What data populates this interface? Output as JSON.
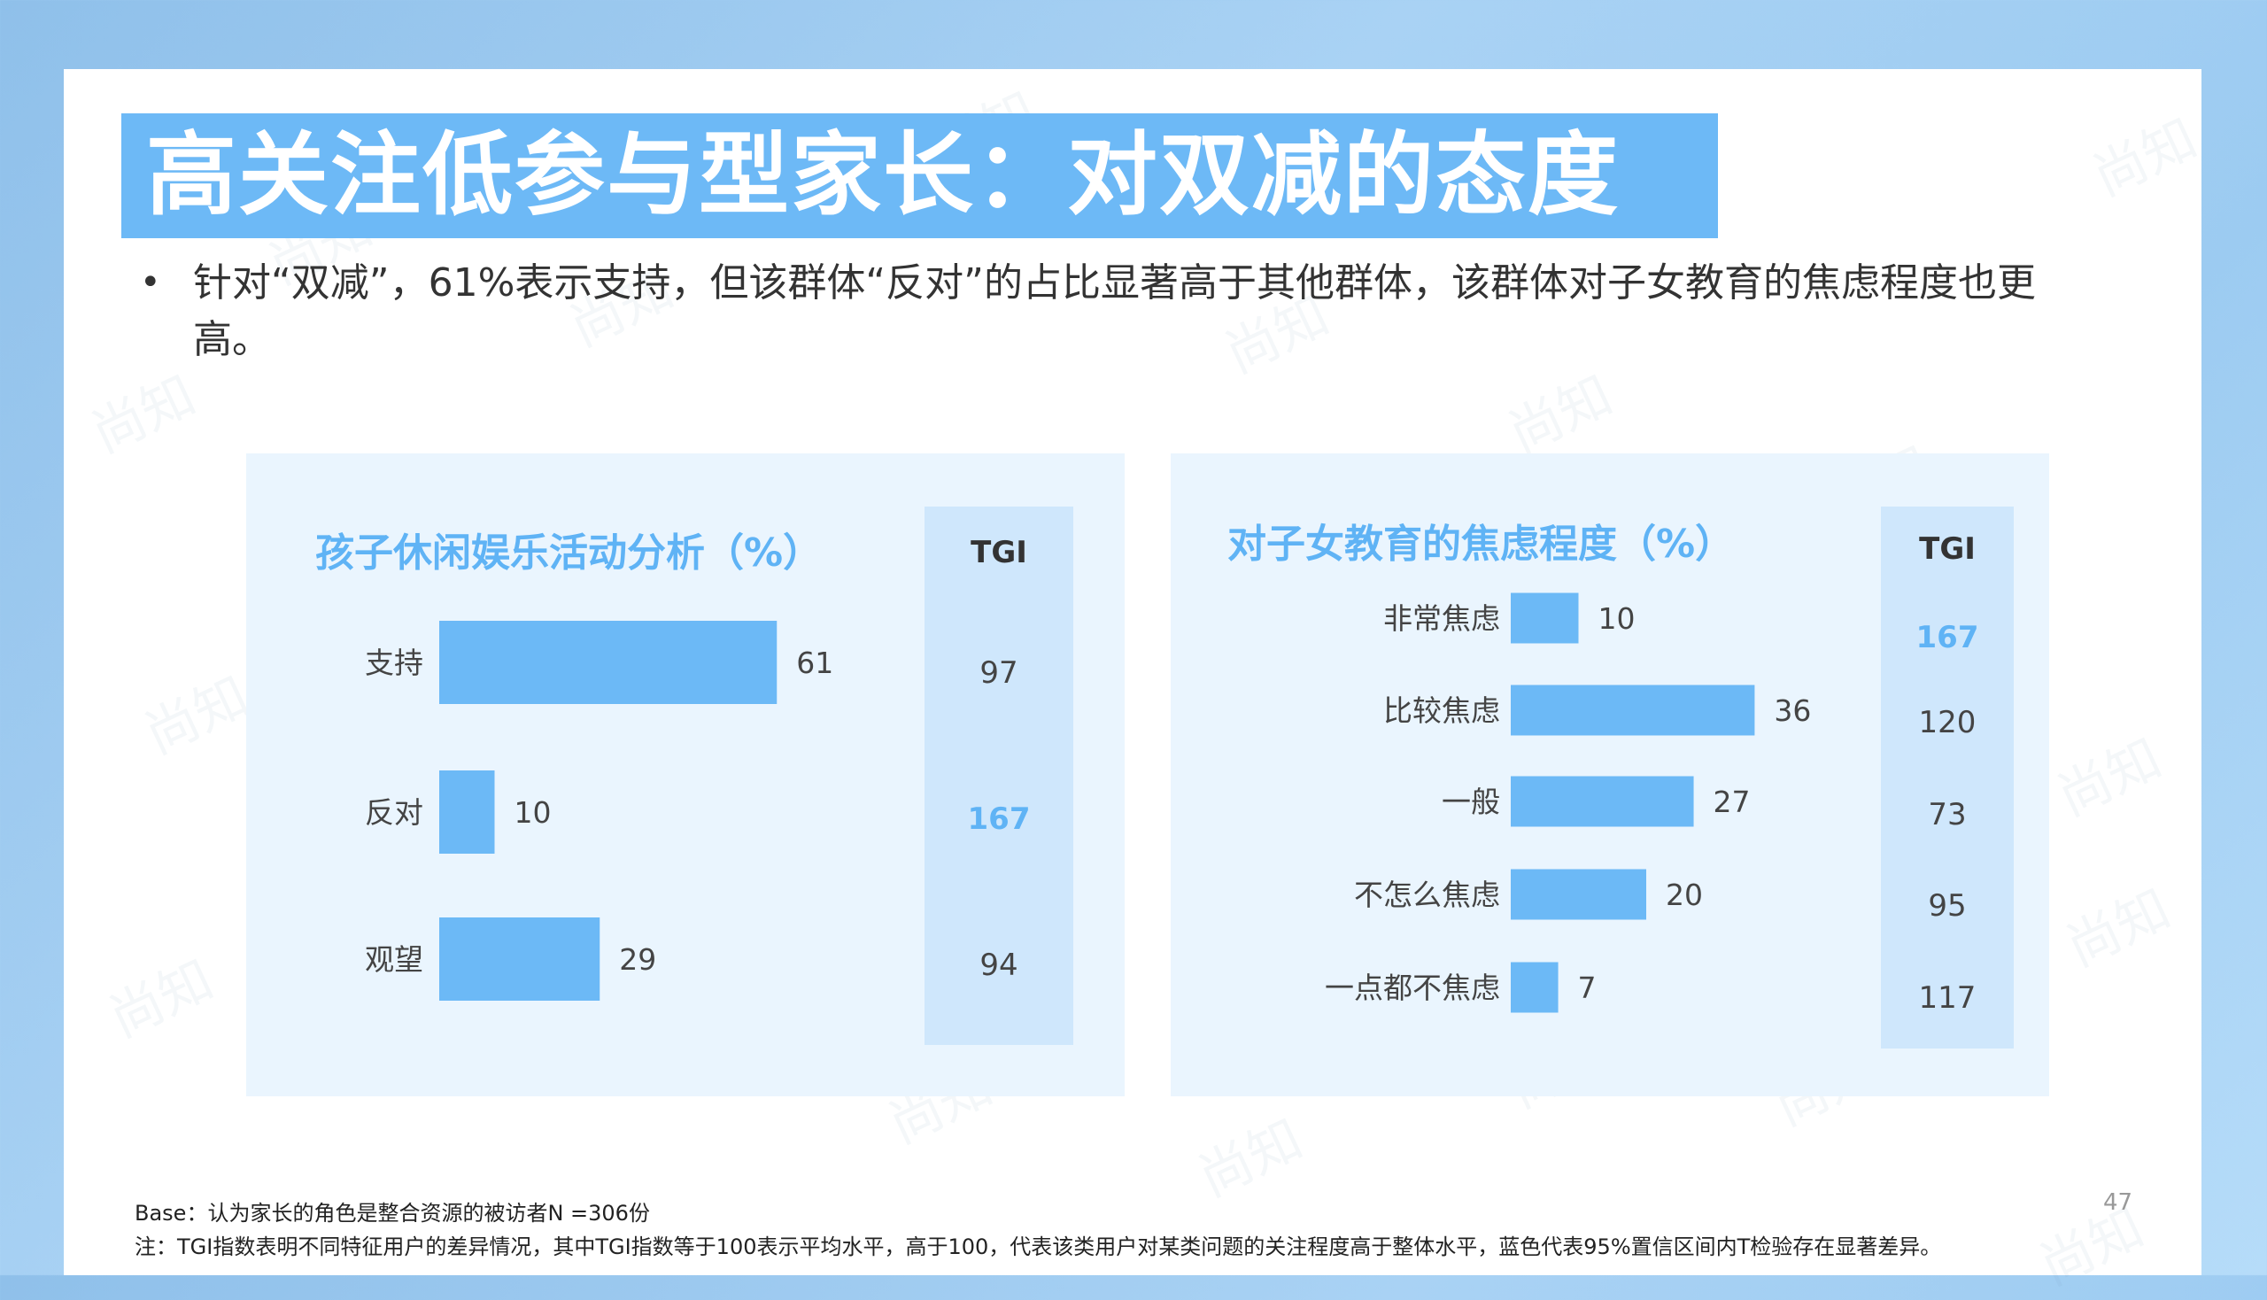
{
  "slide": {
    "title": "高关注低参与型家长：对双减的态度",
    "bullet": "针对“双减”，61%表示支持，但该群体“反对”的占比显著高于其他群体，该群体对子女教育的焦虑程度也更高。",
    "bullet_symbol": "•",
    "base_note": "Base：认为家长的角色是整合资源的被访者N =306份",
    "tgi_note": "注：TGI指数表明不同特征用户的差异情况，其中TGI指数等于100表示平均水平，高于100，代表该类用户对某类问题的关注程度高于整体水平，蓝色代表95%置信区间内T检验存在显著差异。",
    "page_number": "47",
    "watermark_text": "尚知"
  },
  "colors": {
    "bar": "#6cb9f6",
    "title_bar": "#6db9f6",
    "panel": "#eaf5fe",
    "tgi_column": "#cfe7fc",
    "highlight": "#5fb3f5"
  },
  "chart_data": [
    {
      "type": "bar",
      "orientation": "horizontal",
      "title": "孩子休闲娱乐活动分析（%）",
      "categories": [
        "支持",
        "反对",
        "观望"
      ],
      "values": [
        61,
        10,
        29
      ],
      "xlim": [
        0,
        100
      ],
      "tgi_header": "TGI",
      "tgi": [
        "97",
        "167",
        "94"
      ],
      "tgi_highlight": [
        false,
        true,
        false
      ]
    },
    {
      "type": "bar",
      "orientation": "horizontal",
      "title": "对子女教育的焦虑程度（%）",
      "categories": [
        "非常焦虑",
        "比较焦虑",
        "一般",
        "不怎么焦虑",
        "一点都不焦虑"
      ],
      "values": [
        10,
        36,
        27,
        20,
        7
      ],
      "xlim": [
        0,
        100
      ],
      "tgi_header": "TGI",
      "tgi": [
        "167",
        "120",
        "73",
        "95",
        "117"
      ],
      "tgi_highlight": [
        true,
        false,
        false,
        false,
        false
      ]
    }
  ]
}
